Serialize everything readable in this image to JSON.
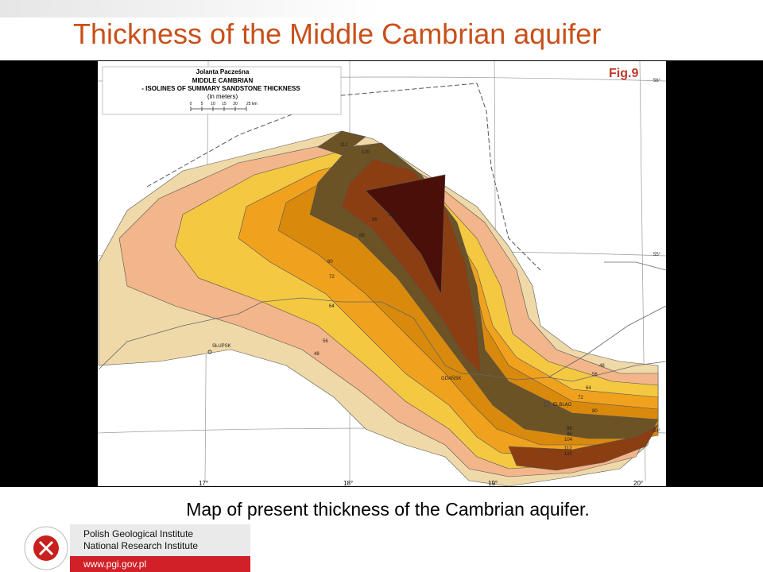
{
  "slide": {
    "title": "Thickness of the Middle Cambrian aquifer",
    "caption": "Map of present thickness of the Cambrian aquifer.",
    "footer": {
      "institute": [
        "Polish Geological Institute",
        "National Research Institute"
      ],
      "url": "www.pgi.gov.pl"
    }
  },
  "map": {
    "author": "Jolanta Pacześna",
    "legend_title": "MIDDLE CAMBRIAN",
    "legend_subtitle": "- ISOLINES OF SUMMARY SANDSTONE THICKNESS",
    "legend_unit": "(in meters)",
    "scale": [
      "0",
      "5",
      "10",
      "15",
      "20",
      "25 km"
    ],
    "figure": "Fig.9",
    "latitudes": [
      "56°",
      "55°",
      "54°"
    ],
    "longitudes": [
      "17°",
      "18°",
      "19°",
      "20°"
    ],
    "cities": [
      "SŁUPSK",
      "GDAŃSK",
      "ELBLĄG"
    ],
    "contour_labels": [
      "80",
      "72",
      "64",
      "56",
      "48",
      "88",
      "96",
      "104",
      "112",
      "120",
      "48",
      "56",
      "64",
      "72",
      "80",
      "88",
      "96",
      "104",
      "112",
      "120"
    ]
  }
}
